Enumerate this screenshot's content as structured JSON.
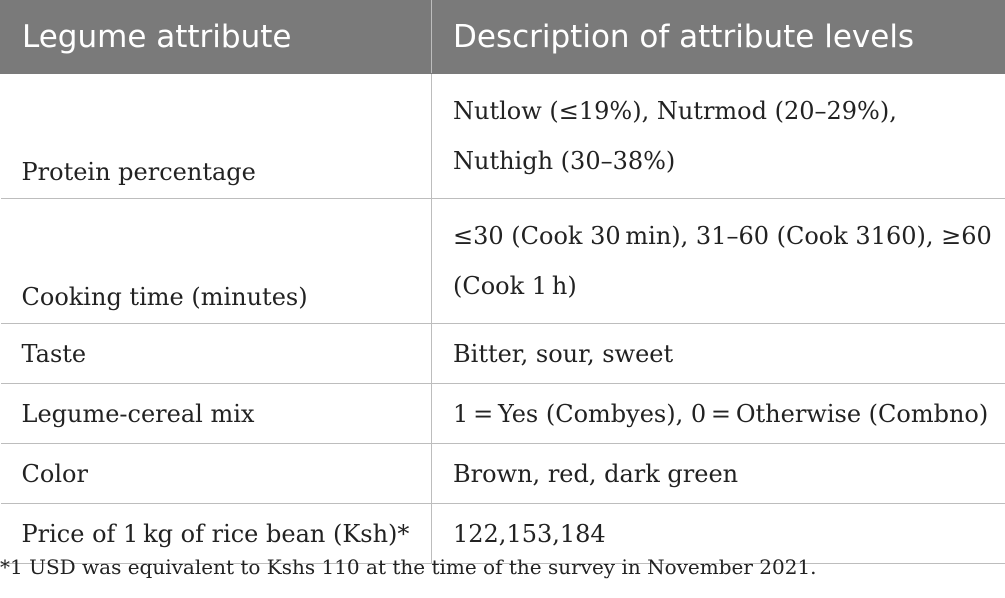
{
  "table": {
    "headers": [
      "Legume attribute",
      "Description of attribute levels"
    ],
    "rows": [
      {
        "attribute": "Protein percentage",
        "description": "Nutlow (≤19%), Nutrmod (20–29%), Nuthigh (30–38%)"
      },
      {
        "attribute": "Cooking time (minutes)",
        "description": "≤30 (Cook 30 min), 31–60 (Cook 3160), ≥60 (Cook 1 h)"
      },
      {
        "attribute": "Taste",
        "description": "Bitter, sour, sweet"
      },
      {
        "attribute": "Legume-cereal mix",
        "description": "1 = Yes (Combyes), 0 = Otherwise (Combno)"
      },
      {
        "attribute": "Color",
        "description": "Brown, red, dark green"
      },
      {
        "attribute": "Price of 1 kg of rice bean (Ksh)*",
        "description": "122,153,184"
      }
    ]
  },
  "footnote": "*1 USD was equivalent to Kshs 110 at the time of the survey in November 2021."
}
